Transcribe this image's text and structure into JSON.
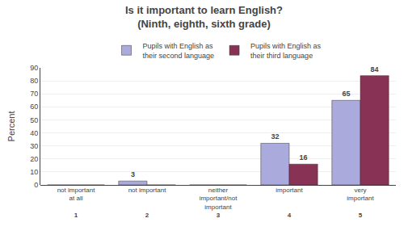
{
  "chart_data": {
    "type": "bar",
    "title": "Is it important to learn English?\n(Ninth, eighth, sixth grade)",
    "ylabel": "Percent",
    "categories": [
      "not important\nat all",
      "not important",
      "neither\nimportant/not\nimportant",
      "important",
      "very\nimportant"
    ],
    "annotations": [
      "1",
      "2",
      "3",
      "4",
      "5"
    ],
    "series": [
      {
        "name": "Pupils with English as\ntheir second language",
        "color": "#aaaadd",
        "values": [
          0,
          3,
          0,
          32,
          65
        ]
      },
      {
        "name": "Pupils with English as\ntheir third language",
        "color": "#883355",
        "values": [
          0,
          0,
          0,
          16,
          84
        ]
      }
    ],
    "ylim": [
      0,
      90
    ],
    "yticks": [
      0,
      10,
      20,
      30,
      40,
      50,
      60,
      70,
      80,
      90
    ],
    "grid": true,
    "data_labels": true
  }
}
